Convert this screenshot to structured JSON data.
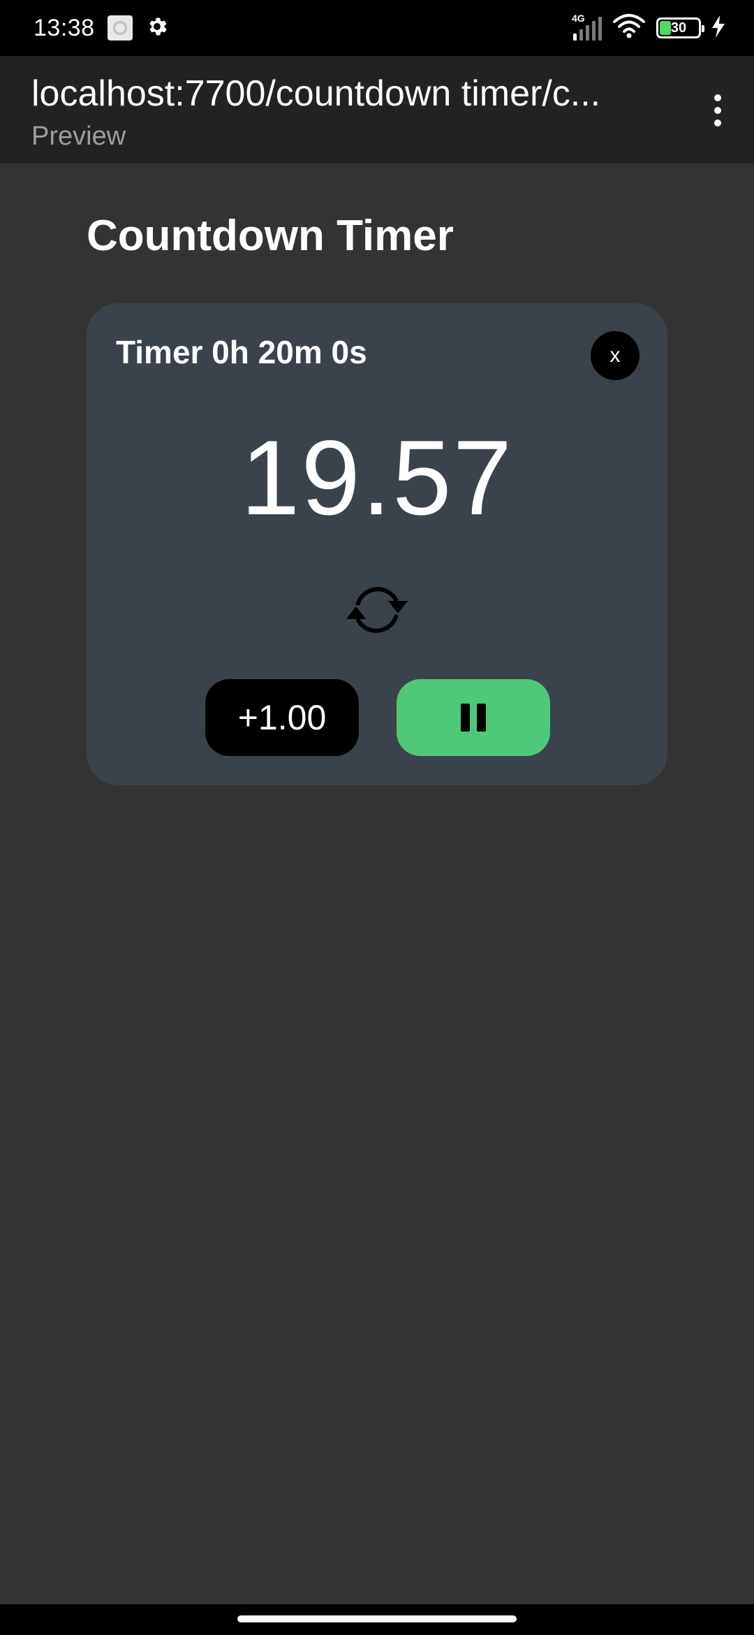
{
  "status_bar": {
    "time": "13:38",
    "network_type": "4G",
    "battery_level": "30",
    "battery_fraction": 0.3,
    "icons": [
      "notification-square-icon",
      "settings-gear-icon",
      "signal-icon",
      "wifi-icon",
      "battery-icon",
      "charging-bolt-icon"
    ]
  },
  "app_bar": {
    "title": "localhost:7700/countdown timer/c...",
    "subtitle": "Preview",
    "menu_icon": "more-vertical-icon"
  },
  "main": {
    "heading": "Countdown Timer",
    "timer": {
      "label": "Timer 0h 20m 0s",
      "close_label": "x",
      "display": "19.57",
      "reset_icon": "refresh-arrows-icon",
      "add_label": "+1.00",
      "pause_icon": "pause-icon",
      "colors": {
        "card": "#3a434b",
        "pause_button": "#4ec979",
        "add_button": "#000000"
      }
    }
  },
  "colors": {
    "background": "#333333",
    "app_bar": "#222222",
    "status_bar": "#000000"
  }
}
